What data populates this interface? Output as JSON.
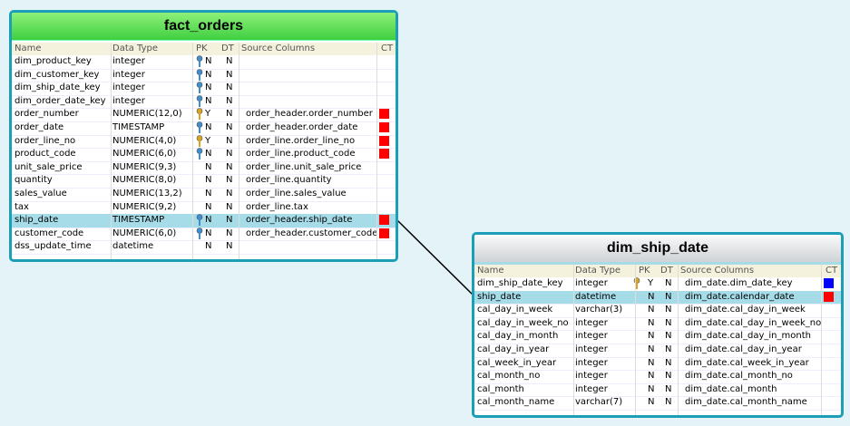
{
  "tables": [
    {
      "title": "fact_orders",
      "columns": [
        "Name",
        "Data Type",
        "PK",
        "DT",
        "Source Columns",
        "CT"
      ],
      "rows": [
        {
          "name": "dim_product_key",
          "type": "integer",
          "key": "#3f8fd0",
          "pk": "N",
          "dt": "N"
        },
        {
          "name": "dim_customer_key",
          "type": "integer",
          "key": "#3f8fd0",
          "pk": "N",
          "dt": "N"
        },
        {
          "name": "dim_ship_date_key",
          "type": "integer",
          "key": "#3f8fd0",
          "pk": "N",
          "dt": "N"
        },
        {
          "name": "dim_order_date_key",
          "type": "integer",
          "key": "#3f8fd0",
          "pk": "N",
          "dt": "N"
        },
        {
          "name": "order_number",
          "type": "NUMERIC(12,0)",
          "key": "#d9a520",
          "pk": "Y",
          "dt": "N",
          "source": "order_header.order_number",
          "ct": "#ff0000"
        },
        {
          "name": "order_date",
          "type": "TIMESTAMP",
          "key": "#3f8fd0",
          "pk": "N",
          "dt": "N",
          "source": "order_header.order_date",
          "ct": "#ff0000"
        },
        {
          "name": "order_line_no",
          "type": "NUMERIC(4,0)",
          "key": "#d9a520",
          "pk": "Y",
          "dt": "N",
          "source": "order_line.order_line_no",
          "ct": "#ff0000"
        },
        {
          "name": "product_code",
          "type": "NUMERIC(6,0)",
          "key": "#3f8fd0",
          "pk": "N",
          "dt": "N",
          "source": "order_line.product_code",
          "ct": "#ff0000"
        },
        {
          "name": "unit_sale_price",
          "type": "NUMERIC(9,3)",
          "pk": "N",
          "dt": "N",
          "source": "order_line.unit_sale_price"
        },
        {
          "name": "quantity",
          "type": "NUMERIC(8,0)",
          "pk": "N",
          "dt": "N",
          "source": "order_line.quantity"
        },
        {
          "name": "sales_value",
          "type": "NUMERIC(13,2)",
          "pk": "N",
          "dt": "N",
          "source": "order_line.sales_value"
        },
        {
          "name": "tax",
          "type": "NUMERIC(9,2)",
          "pk": "N",
          "dt": "N",
          "source": "order_line.tax"
        },
        {
          "name": "ship_date",
          "type": "TIMESTAMP",
          "key": "#3f8fd0",
          "pk": "N",
          "dt": "N",
          "source": "order_header.ship_date",
          "ct": "#ff0000",
          "selected": true
        },
        {
          "name": "customer_code",
          "type": "NUMERIC(6,0)",
          "key": "#3f8fd0",
          "pk": "N",
          "dt": "N",
          "source": "order_header.customer_code",
          "ct": "#ff0000"
        },
        {
          "name": "dss_update_time",
          "type": "datetime",
          "pk": "N",
          "dt": "N"
        }
      ]
    },
    {
      "title": "dim_ship_date",
      "columns": [
        "Name",
        "Data Type",
        "PK",
        "DT",
        "Source Columns",
        "CT"
      ],
      "rows": [
        {
          "name": "dim_ship_date_key",
          "type": "integer",
          "key": "#d9a520",
          "pk": "Y",
          "dt": "N",
          "source": "dim_date.dim_date_key",
          "ct": "#0000ff"
        },
        {
          "name": "ship_date",
          "type": "datetime",
          "pk": "N",
          "dt": "N",
          "source": "dim_date.calendar_date",
          "ct": "#ff0000",
          "selected": true
        },
        {
          "name": "cal_day_in_week",
          "type": "varchar(3)",
          "pk": "N",
          "dt": "N",
          "source": "dim_date.cal_day_in_week"
        },
        {
          "name": "cal_day_in_week_no",
          "type": "integer",
          "pk": "N",
          "dt": "N",
          "source": "dim_date.cal_day_in_week_no"
        },
        {
          "name": "cal_day_in_month",
          "type": "integer",
          "pk": "N",
          "dt": "N",
          "source": "dim_date.cal_day_in_month"
        },
        {
          "name": "cal_day_in_year",
          "type": "integer",
          "pk": "N",
          "dt": "N",
          "source": "dim_date.cal_day_in_year"
        },
        {
          "name": "cal_week_in_year",
          "type": "integer",
          "pk": "N",
          "dt": "N",
          "source": "dim_date.cal_week_in_year"
        },
        {
          "name": "cal_month_no",
          "type": "integer",
          "pk": "N",
          "dt": "N",
          "source": "dim_date.cal_month_no"
        },
        {
          "name": "cal_month",
          "type": "integer",
          "pk": "N",
          "dt": "N",
          "source": "dim_date.cal_month"
        },
        {
          "name": "cal_month_name",
          "type": "varchar(7)",
          "pk": "N",
          "dt": "N",
          "source": "dim_date.cal_month_name"
        }
      ]
    }
  ]
}
